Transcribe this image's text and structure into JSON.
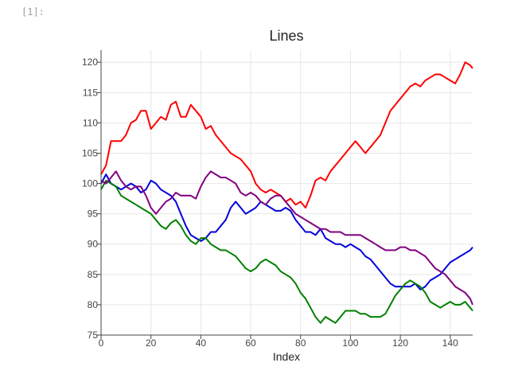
{
  "cell": {
    "prompt": "[1]:"
  },
  "chart_data": {
    "type": "line",
    "title": "Lines",
    "xlabel": "Index",
    "ylabel": "",
    "xlim": [
      0,
      149
    ],
    "ylim": [
      75,
      122
    ],
    "xticks": [
      0,
      20,
      40,
      60,
      80,
      100,
      120,
      140
    ],
    "yticks": [
      75,
      80,
      85,
      90,
      95,
      100,
      105,
      110,
      115,
      120
    ],
    "grid": true,
    "series": [
      {
        "color": "#ff0000",
        "anchors": [
          [
            0,
            101.5
          ],
          [
            2,
            103
          ],
          [
            4,
            107
          ],
          [
            6,
            107
          ],
          [
            8,
            107
          ],
          [
            10,
            108
          ],
          [
            12,
            110
          ],
          [
            14,
            110.5
          ],
          [
            16,
            112
          ],
          [
            18,
            112
          ],
          [
            20,
            109
          ],
          [
            22,
            110
          ],
          [
            24,
            111
          ],
          [
            26,
            110.5
          ],
          [
            28,
            113
          ],
          [
            30,
            113.5
          ],
          [
            32,
            111
          ],
          [
            34,
            111
          ],
          [
            36,
            113
          ],
          [
            38,
            112
          ],
          [
            40,
            111
          ],
          [
            42,
            109
          ],
          [
            44,
            109.5
          ],
          [
            46,
            108
          ],
          [
            48,
            107
          ],
          [
            50,
            106
          ],
          [
            52,
            105
          ],
          [
            54,
            104.5
          ],
          [
            56,
            104
          ],
          [
            58,
            103
          ],
          [
            60,
            102
          ],
          [
            62,
            100
          ],
          [
            64,
            99
          ],
          [
            66,
            98.5
          ],
          [
            68,
            99
          ],
          [
            70,
            98.5
          ],
          [
            72,
            98
          ],
          [
            74,
            97
          ],
          [
            76,
            97.5
          ],
          [
            78,
            96.5
          ],
          [
            80,
            97
          ],
          [
            82,
            96
          ],
          [
            84,
            98
          ],
          [
            86,
            100.5
          ],
          [
            88,
            101
          ],
          [
            90,
            100.5
          ],
          [
            92,
            102
          ],
          [
            94,
            103
          ],
          [
            96,
            104
          ],
          [
            98,
            105
          ],
          [
            100,
            106
          ],
          [
            102,
            107
          ],
          [
            104,
            106
          ],
          [
            106,
            105
          ],
          [
            108,
            106
          ],
          [
            110,
            107
          ],
          [
            112,
            108
          ],
          [
            114,
            110
          ],
          [
            116,
            112
          ],
          [
            118,
            113
          ],
          [
            120,
            114
          ],
          [
            122,
            115
          ],
          [
            124,
            116
          ],
          [
            126,
            116.5
          ],
          [
            128,
            116
          ],
          [
            130,
            117
          ],
          [
            132,
            117.5
          ],
          [
            134,
            118
          ],
          [
            136,
            118
          ],
          [
            138,
            117.5
          ],
          [
            140,
            117
          ],
          [
            142,
            116.5
          ],
          [
            144,
            118
          ],
          [
            146,
            120
          ],
          [
            148,
            119.5
          ],
          [
            149,
            119
          ]
        ]
      },
      {
        "color": "#0000dd",
        "anchors": [
          [
            0,
            100
          ],
          [
            2,
            101.5
          ],
          [
            4,
            100
          ],
          [
            6,
            99.5
          ],
          [
            8,
            99
          ],
          [
            10,
            99.5
          ],
          [
            12,
            100
          ],
          [
            14,
            99.5
          ],
          [
            16,
            98.5
          ],
          [
            18,
            99
          ],
          [
            20,
            100.5
          ],
          [
            22,
            100
          ],
          [
            24,
            99
          ],
          [
            26,
            98.5
          ],
          [
            28,
            98
          ],
          [
            30,
            97
          ],
          [
            32,
            95
          ],
          [
            34,
            93
          ],
          [
            36,
            91.5
          ],
          [
            38,
            91
          ],
          [
            40,
            90.5
          ],
          [
            42,
            91
          ],
          [
            44,
            92
          ],
          [
            46,
            92
          ],
          [
            48,
            93
          ],
          [
            50,
            94
          ],
          [
            52,
            96
          ],
          [
            54,
            97
          ],
          [
            56,
            96
          ],
          [
            58,
            95
          ],
          [
            60,
            95.5
          ],
          [
            62,
            96
          ],
          [
            64,
            97
          ],
          [
            66,
            96.5
          ],
          [
            68,
            96
          ],
          [
            70,
            95.5
          ],
          [
            72,
            95.5
          ],
          [
            74,
            96
          ],
          [
            76,
            95.5
          ],
          [
            78,
            94
          ],
          [
            80,
            93
          ],
          [
            82,
            92
          ],
          [
            84,
            92
          ],
          [
            86,
            91.5
          ],
          [
            88,
            92.5
          ],
          [
            90,
            91
          ],
          [
            92,
            90.5
          ],
          [
            94,
            90
          ],
          [
            96,
            90
          ],
          [
            98,
            89.5
          ],
          [
            100,
            90
          ],
          [
            102,
            89.5
          ],
          [
            104,
            89
          ],
          [
            106,
            88
          ],
          [
            108,
            87.5
          ],
          [
            110,
            86.5
          ],
          [
            112,
            85.5
          ],
          [
            114,
            84.5
          ],
          [
            116,
            83.5
          ],
          [
            118,
            83
          ],
          [
            120,
            83
          ],
          [
            122,
            83
          ],
          [
            124,
            83
          ],
          [
            126,
            83.5
          ],
          [
            128,
            82.5
          ],
          [
            130,
            83
          ],
          [
            132,
            84
          ],
          [
            134,
            84.5
          ],
          [
            136,
            85
          ],
          [
            138,
            86
          ],
          [
            140,
            87
          ],
          [
            142,
            87.5
          ],
          [
            144,
            88
          ],
          [
            146,
            88.5
          ],
          [
            148,
            89
          ],
          [
            149,
            89.5
          ]
        ]
      },
      {
        "color": "#008000",
        "anchors": [
          [
            0,
            99
          ],
          [
            2,
            100.5
          ],
          [
            4,
            100
          ],
          [
            6,
            99.5
          ],
          [
            8,
            98
          ],
          [
            10,
            97.5
          ],
          [
            12,
            97
          ],
          [
            14,
            96.5
          ],
          [
            16,
            96
          ],
          [
            18,
            95.5
          ],
          [
            20,
            95
          ],
          [
            22,
            94
          ],
          [
            24,
            93
          ],
          [
            26,
            92.5
          ],
          [
            28,
            93.5
          ],
          [
            30,
            94
          ],
          [
            32,
            93
          ],
          [
            34,
            91.5
          ],
          [
            36,
            90.5
          ],
          [
            38,
            90
          ],
          [
            40,
            91
          ],
          [
            42,
            91
          ],
          [
            44,
            90
          ],
          [
            46,
            89.5
          ],
          [
            48,
            89
          ],
          [
            50,
            89
          ],
          [
            52,
            88.5
          ],
          [
            54,
            88
          ],
          [
            56,
            87
          ],
          [
            58,
            86
          ],
          [
            60,
            85.5
          ],
          [
            62,
            86
          ],
          [
            64,
            87
          ],
          [
            66,
            87.5
          ],
          [
            68,
            87
          ],
          [
            70,
            86.5
          ],
          [
            72,
            85.5
          ],
          [
            74,
            85
          ],
          [
            76,
            84.5
          ],
          [
            78,
            83.5
          ],
          [
            80,
            82
          ],
          [
            82,
            81
          ],
          [
            84,
            79.5
          ],
          [
            86,
            78
          ],
          [
            88,
            77
          ],
          [
            90,
            78
          ],
          [
            92,
            77.5
          ],
          [
            94,
            77
          ],
          [
            96,
            78
          ],
          [
            98,
            79
          ],
          [
            100,
            79
          ],
          [
            102,
            79
          ],
          [
            104,
            78.5
          ],
          [
            106,
            78.5
          ],
          [
            108,
            78
          ],
          [
            110,
            78
          ],
          [
            112,
            78
          ],
          [
            114,
            78.5
          ],
          [
            116,
            80
          ],
          [
            118,
            81.5
          ],
          [
            120,
            82.5
          ],
          [
            122,
            83.5
          ],
          [
            124,
            84
          ],
          [
            126,
            83.5
          ],
          [
            128,
            83
          ],
          [
            130,
            82
          ],
          [
            132,
            80.5
          ],
          [
            134,
            80
          ],
          [
            136,
            79.5
          ],
          [
            138,
            80
          ],
          [
            140,
            80.5
          ],
          [
            142,
            80
          ],
          [
            144,
            80
          ],
          [
            146,
            80.5
          ],
          [
            148,
            79.5
          ],
          [
            149,
            79
          ]
        ]
      },
      {
        "color": "#800080",
        "anchors": [
          [
            0,
            100.5
          ],
          [
            2,
            100
          ],
          [
            4,
            101
          ],
          [
            6,
            102
          ],
          [
            8,
            100.5
          ],
          [
            10,
            99.5
          ],
          [
            12,
            99
          ],
          [
            14,
            99.5
          ],
          [
            16,
            99.5
          ],
          [
            18,
            98
          ],
          [
            20,
            96
          ],
          [
            22,
            95
          ],
          [
            24,
            96
          ],
          [
            26,
            97
          ],
          [
            28,
            97.5
          ],
          [
            30,
            98.5
          ],
          [
            32,
            98
          ],
          [
            34,
            98
          ],
          [
            36,
            98
          ],
          [
            38,
            97.5
          ],
          [
            40,
            99.5
          ],
          [
            42,
            101
          ],
          [
            44,
            102
          ],
          [
            46,
            101.5
          ],
          [
            48,
            101
          ],
          [
            50,
            101
          ],
          [
            52,
            100.5
          ],
          [
            54,
            100
          ],
          [
            56,
            98.5
          ],
          [
            58,
            98
          ],
          [
            60,
            98.5
          ],
          [
            62,
            98
          ],
          [
            64,
            97
          ],
          [
            66,
            96.5
          ],
          [
            68,
            97.5
          ],
          [
            70,
            98
          ],
          [
            72,
            98
          ],
          [
            74,
            97
          ],
          [
            76,
            96
          ],
          [
            78,
            95
          ],
          [
            80,
            94.5
          ],
          [
            82,
            94
          ],
          [
            84,
            93.5
          ],
          [
            86,
            93
          ],
          [
            88,
            92.5
          ],
          [
            90,
            92.5
          ],
          [
            92,
            92
          ],
          [
            94,
            92
          ],
          [
            96,
            92
          ],
          [
            98,
            91.5
          ],
          [
            100,
            91.5
          ],
          [
            102,
            91.5
          ],
          [
            104,
            91.5
          ],
          [
            106,
            91
          ],
          [
            108,
            90.5
          ],
          [
            110,
            90
          ],
          [
            112,
            89.5
          ],
          [
            114,
            89
          ],
          [
            116,
            89
          ],
          [
            118,
            89
          ],
          [
            120,
            89.5
          ],
          [
            122,
            89.5
          ],
          [
            124,
            89
          ],
          [
            126,
            89
          ],
          [
            128,
            88.5
          ],
          [
            130,
            88
          ],
          [
            132,
            87
          ],
          [
            134,
            86
          ],
          [
            136,
            85.5
          ],
          [
            138,
            85
          ],
          [
            140,
            84
          ],
          [
            142,
            83
          ],
          [
            144,
            82.5
          ],
          [
            146,
            82
          ],
          [
            148,
            81
          ],
          [
            149,
            80
          ]
        ]
      }
    ]
  }
}
